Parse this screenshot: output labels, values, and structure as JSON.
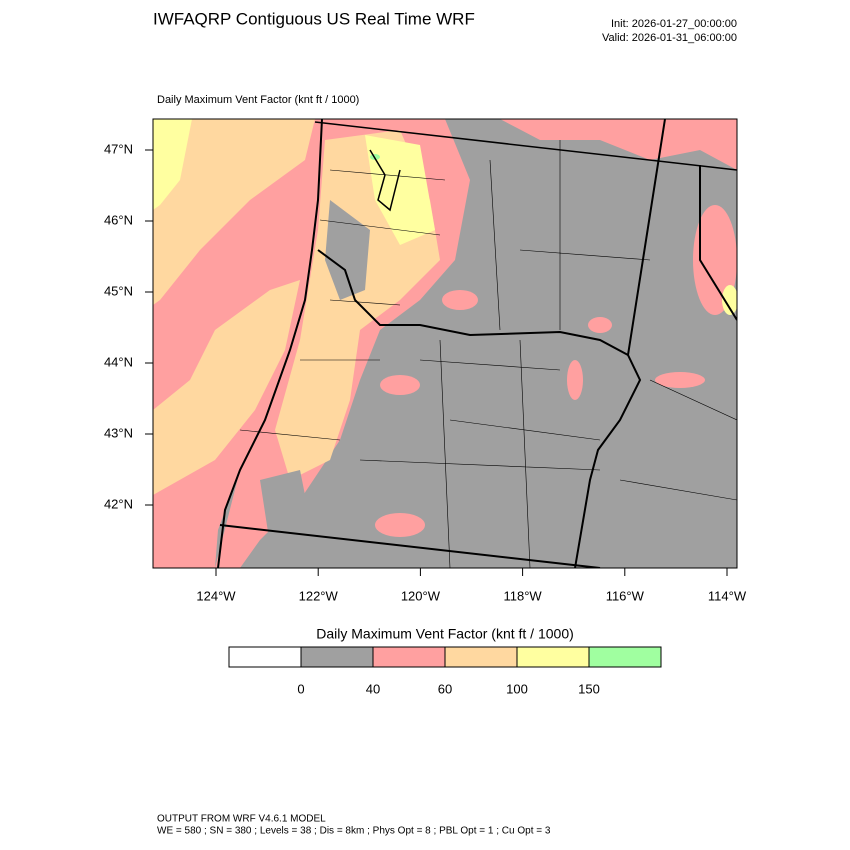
{
  "header": {
    "title": "IWFAQRP Contiguous US Real Time WRF",
    "init": "Init: 2026-01-27_00:00:00",
    "valid": "Valid: 2026-01-31_06:00:00"
  },
  "map": {
    "label": "Daily Maximum Vent Factor   (knt ft / 1000)",
    "lat_labels": [
      "47°N",
      "46°N",
      "45°N",
      "44°N",
      "43°N",
      "42°N"
    ],
    "lon_labels": [
      "124°W",
      "122°W",
      "120°W",
      "118°W",
      "116°W",
      "114°W"
    ]
  },
  "colorbar": {
    "title": "Daily Maximum Vent Factor  (knt ft / 1000)",
    "colors": [
      "#ffffff",
      "#a0a0a0",
      "#ffa0a0",
      "#ffd8a0",
      "#ffffa0",
      "#a0ffa0"
    ],
    "labels": [
      0,
      40,
      60,
      100,
      150
    ]
  },
  "footer": {
    "lines": [
      "OUTPUT FROM WRF V4.6.1 MODEL",
      "WE = 580 ; SN = 380 ; Levels = 38 ; Dis = 8km ; Phys Opt = 8 ; PBL Opt = 1 ; Cu Opt = 3"
    ]
  }
}
